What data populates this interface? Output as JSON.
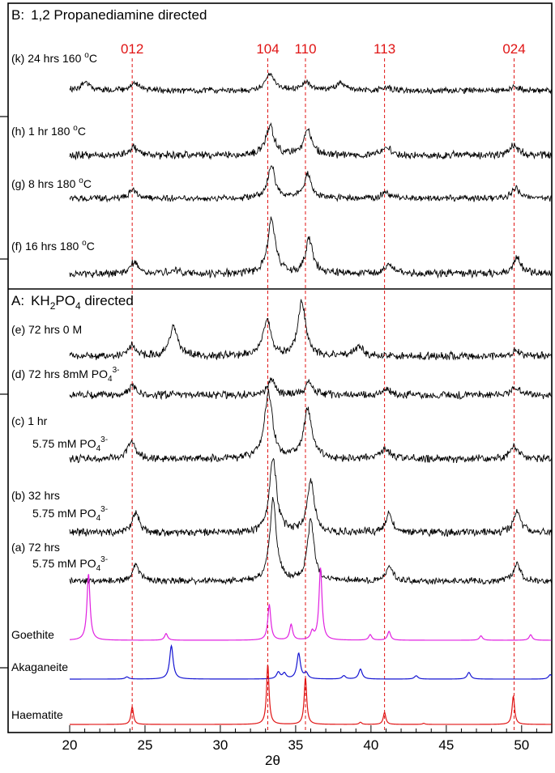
{
  "chart_data": {
    "type": "line",
    "xlabel": "2θ",
    "xlim": [
      20,
      52
    ],
    "x_ticks": [
      20,
      25,
      30,
      35,
      40,
      45,
      50
    ],
    "colors": {
      "sample": "#000000",
      "goethite": "#e020e0",
      "akaganeite": "#1414d2",
      "haematite": "#e01414",
      "reflection_line": "#e01414"
    },
    "reflections": [
      {
        "label": "012",
        "x": 24.15
      },
      {
        "label": "104",
        "x": 33.15
      },
      {
        "label": "110",
        "x": 35.65
      },
      {
        "label": "113",
        "x": 40.9
      },
      {
        "label": "024",
        "x": 49.5
      }
    ],
    "panels": [
      {
        "id": "B",
        "prefix": "B:",
        "title": "1,2 Propanediamine directed"
      },
      {
        "id": "A",
        "prefix": "A:",
        "title_main": "KH",
        "title_sub1": "2",
        "title_mid": "PO",
        "title_sub2": "4",
        "title_end": " directed"
      }
    ],
    "series": [
      {
        "name": "(k) 24 hrs 160 °C",
        "panel": "B",
        "label_line1": "(k) 24 hrs 160 ",
        "label_sup": "o",
        "label_tail": "C",
        "peaks": [
          [
            21.0,
            1.0
          ],
          [
            24.3,
            0.9
          ],
          [
            33.3,
            1.9
          ],
          [
            35.7,
            1.0
          ],
          [
            38.0,
            0.9
          ],
          [
            41.0,
            0.45
          ],
          [
            49.5,
            0.45
          ]
        ]
      },
      {
        "name": "(h) 1 hr 180 °C",
        "panel": "B",
        "label_line1": "(h) 1 hr  180 ",
        "label_sup": "o",
        "label_tail": "C",
        "peaks": [
          [
            24.2,
            0.8
          ],
          [
            33.3,
            2.6
          ],
          [
            35.8,
            2.2
          ],
          [
            41.0,
            0.7
          ],
          [
            49.5,
            1.0
          ]
        ]
      },
      {
        "name": "(g) 8 hrs 180 °C",
        "panel": "B",
        "label_line1": "(g) 8 hrs 180 ",
        "label_sup": "o",
        "label_tail": "C",
        "peaks": [
          [
            24.2,
            0.8
          ],
          [
            33.4,
            2.9
          ],
          [
            35.8,
            2.2
          ],
          [
            41.0,
            0.6
          ],
          [
            49.6,
            1.0
          ]
        ]
      },
      {
        "name": "(f) 16 hrs 180 °C",
        "panel": "B",
        "label_line1": "(f) 16 hrs 180 ",
        "label_sup": "o",
        "label_tail": "C",
        "peaks": [
          [
            24.3,
            0.9
          ],
          [
            27.0,
            0.25
          ],
          [
            33.4,
            4.2
          ],
          [
            35.9,
            2.6
          ],
          [
            41.2,
            0.7
          ],
          [
            49.7,
            1.2
          ]
        ]
      },
      {
        "name": "(e) 72 hrs 0 M",
        "panel": "A",
        "label_line1": "(e) 72 hrs 0 M",
        "label_sup": "",
        "label_tail": "",
        "peaks": [
          [
            24.1,
            0.5
          ],
          [
            26.9,
            1.5
          ],
          [
            33.1,
            1.8
          ],
          [
            35.4,
            2.7
          ],
          [
            39.2,
            0.5
          ],
          [
            49.6,
            0.3
          ]
        ]
      },
      {
        "name": "(d) 72 hrs 8mM PO4 3-",
        "panel": "A",
        "label_line1": "(d) 72 hrs 8mM PO",
        "label_sub": "4",
        "label_sup": "3-",
        "label_tail": "",
        "peaks": [
          [
            24.2,
            0.4
          ],
          [
            33.4,
            0.8
          ],
          [
            35.9,
            0.7
          ],
          [
            41.0,
            0.3
          ],
          [
            49.6,
            0.4
          ]
        ]
      },
      {
        "name": "(c) 1 hr 5.75 mM PO4 3-",
        "panel": "A",
        "label_line1": "(c) 1 hr",
        "label_line2": "5.75 mM PO",
        "label_sub": "4",
        "label_sup": "3-",
        "peaks": [
          [
            24.1,
            0.8
          ],
          [
            33.2,
            3.2
          ],
          [
            35.8,
            2.4
          ],
          [
            41.0,
            0.5
          ],
          [
            49.5,
            0.6
          ]
        ]
      },
      {
        "name": "(b) 32 hrs 5.75 mM PO4 3-",
        "panel": "A",
        "label_line1": "(b) 32 hrs",
        "label_line2": "5.75 mM PO",
        "label_sub": "4",
        "label_sup": "3-",
        "peaks": [
          [
            24.4,
            1.0
          ],
          [
            33.5,
            3.7
          ],
          [
            36.0,
            2.5
          ],
          [
            41.2,
            0.9
          ],
          [
            49.7,
            1.1
          ]
        ]
      },
      {
        "name": "(a) 72 hrs 5.75 mM PO4 3-",
        "panel": "A",
        "label_line1": "(a) 72 hrs",
        "label_line2": "5.75 mM PO",
        "label_sub": "4",
        "label_sup": "3-",
        "peaks": [
          [
            24.4,
            0.8
          ],
          [
            33.5,
            4.0
          ],
          [
            36.0,
            3.0
          ],
          [
            41.2,
            0.8
          ],
          [
            49.7,
            0.9
          ]
        ]
      },
      {
        "name": "Goethite",
        "panel": "A",
        "reference": true,
        "color": "goethite",
        "peaks": [
          [
            21.25,
            6.0
          ],
          [
            26.4,
            0.6
          ],
          [
            33.25,
            3.2
          ],
          [
            34.7,
            1.4
          ],
          [
            36.1,
            0.7
          ],
          [
            36.65,
            6.5
          ],
          [
            39.95,
            0.5
          ],
          [
            41.2,
            0.8
          ],
          [
            47.3,
            0.4
          ],
          [
            50.6,
            0.5
          ]
        ]
      },
      {
        "name": "Akaganeite",
        "panel": "A",
        "reference": true,
        "color": "akaganeite",
        "peaks": [
          [
            23.8,
            0.2
          ],
          [
            26.75,
            3.0
          ],
          [
            33.85,
            0.6
          ],
          [
            34.25,
            0.5
          ],
          [
            35.2,
            2.3
          ],
          [
            35.7,
            0.5
          ],
          [
            38.2,
            0.3
          ],
          [
            39.3,
            0.9
          ],
          [
            43.0,
            0.3
          ],
          [
            46.5,
            0.6
          ],
          [
            51.9,
            0.4
          ]
        ]
      },
      {
        "name": "Haematite",
        "panel": "A",
        "reference": true,
        "color": "haematite",
        "peaks": [
          [
            24.15,
            1.6
          ],
          [
            33.15,
            5.5
          ],
          [
            35.65,
            4.3
          ],
          [
            39.3,
            0.2
          ],
          [
            40.9,
            1.1
          ],
          [
            43.5,
            0.1
          ],
          [
            49.45,
            2.6
          ]
        ]
      }
    ]
  }
}
